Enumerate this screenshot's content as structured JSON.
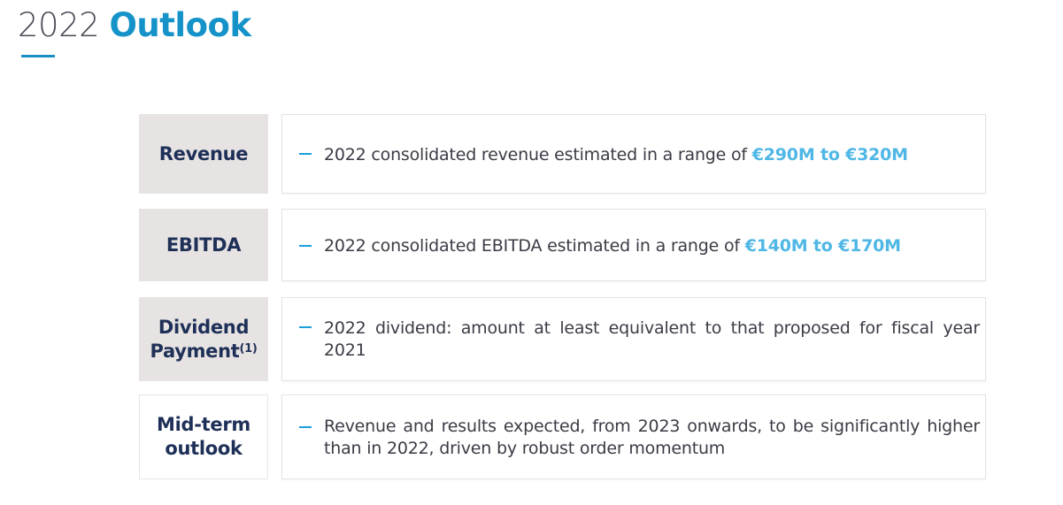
{
  "title": {
    "year": "2022",
    "word": "Outlook"
  },
  "rows": [
    {
      "label": "Revenue",
      "text": "2022 consolidated revenue estimated in a range of ",
      "highlight": "€290M to €320M"
    },
    {
      "label": "EBITDA",
      "text": "2022 consolidated EBITDA estimated in a range of ",
      "highlight": "€140M to €170M"
    },
    {
      "label_line1": "Dividend",
      "label_line2": "Payment",
      "label_sup": "(1)",
      "text": "2022 dividend: amount at least equivalent to that proposed for fiscal year 2021"
    },
    {
      "label_line1": "Mid-term",
      "label_line2": "outlook",
      "text": "Revenue and results expected, from 2023 onwards, to be significantly higher than in 2022, driven by robust order momentum"
    }
  ],
  "colors": {
    "accent": "#1593c9",
    "highlight": "#4fb7e6",
    "label_text": "#1f3058",
    "label_bg": "#e6e3e2"
  }
}
